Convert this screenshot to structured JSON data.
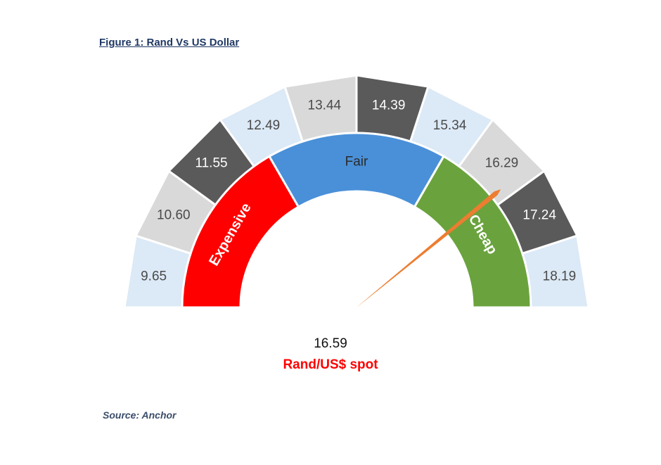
{
  "figure": {
    "title": "Figure 1: Rand Vs US Dollar",
    "source": "Source: Anchor"
  },
  "chart_data": {
    "type": "gauge",
    "title": "Figure 1: Rand Vs US Dollar",
    "value": 16.59,
    "value_label": "Rand/US$ spot",
    "scale_min": 9.18,
    "scale_max": 18.66,
    "outer_ticks": [
      {
        "label": "9.65",
        "value": 9.65,
        "color": "#dce9f6"
      },
      {
        "label": "10.60",
        "value": 10.6,
        "color": "#d9d9d9"
      },
      {
        "label": "11.55",
        "value": 11.55,
        "color": "#5a5a5a"
      },
      {
        "label": "12.49",
        "value": 12.49,
        "color": "#dce9f6"
      },
      {
        "label": "13.44",
        "value": 13.44,
        "color": "#d9d9d9"
      },
      {
        "label": "14.39",
        "value": 14.39,
        "color": "#5a5a5a"
      },
      {
        "label": "15.34",
        "value": 15.34,
        "color": "#dce9f6"
      },
      {
        "label": "16.29",
        "value": 16.29,
        "color": "#d9d9d9"
      },
      {
        "label": "17.24",
        "value": 17.24,
        "color": "#5a5a5a"
      },
      {
        "label": "18.19",
        "value": 18.19,
        "color": "#dce9f6"
      }
    ],
    "zones": [
      {
        "label": "Expensive",
        "from": 9.18,
        "to": 12.34,
        "color": "#ff0000"
      },
      {
        "label": "Fair",
        "from": 12.34,
        "to": 15.5,
        "color": "#4a90d9"
      },
      {
        "label": "Cheap",
        "from": 15.5,
        "to": 18.66,
        "color": "#6aa33d"
      }
    ],
    "needle_color": "#ed7d31"
  }
}
